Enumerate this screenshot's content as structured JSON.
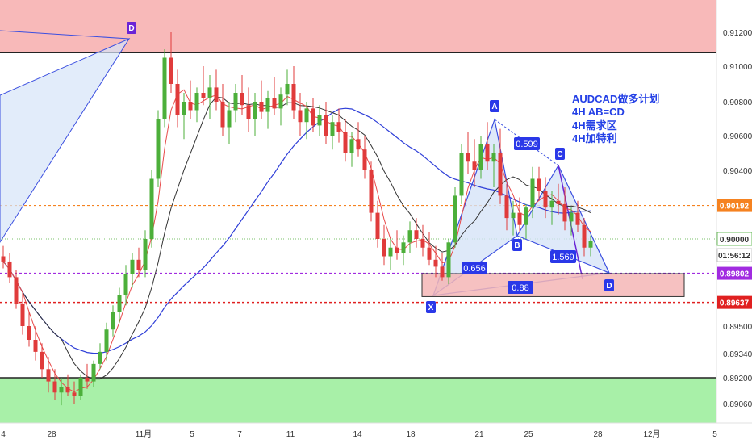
{
  "colors": {
    "supply_zone": "#f8b9b9",
    "demand_zone": "#a8f0a8",
    "target_zone": "#f4b6b6",
    "pattern_fill": "#d6e4f8",
    "pattern_line": "#3b4fe0",
    "marker_bg": "#2a38e8",
    "marker_bg_d_top": "#6a24d6",
    "ma_fast": "#e84a4a",
    "ma_mid": "#333333",
    "ma_slow": "#2f3fd8",
    "candle_up": "#4caf3a",
    "candle_down": "#e03b3b",
    "orange_level": "#f58220",
    "purple_level": "#a12be0",
    "red_level": "#e02020",
    "current_level": "#4caf3a"
  },
  "chart_data": {
    "type": "candlestick",
    "symbol": "AUDCAD",
    "timeframe": "4H",
    "x_tick_labels": [
      "4",
      "28",
      "11月",
      "5",
      "7",
      "11",
      "14",
      "18",
      "21",
      "25",
      "28",
      "12月",
      "5"
    ],
    "y_tick_labels": [
      "0.91200",
      "0.91000",
      "0.90800",
      "0.90600",
      "0.90400",
      "0.90000",
      "0.89500",
      "0.89340",
      "0.89200",
      "0.89060"
    ],
    "price_tags": [
      {
        "label": "0.90192",
        "role": "orange"
      },
      {
        "label": "0.90000",
        "role": "current"
      },
      {
        "label": "01:56:12",
        "role": "timer"
      },
      {
        "label": "0.89802",
        "role": "purple"
      },
      {
        "label": "0.89637",
        "role": "red"
      }
    ],
    "levels": {
      "supply_zone_top": 0.9135,
      "supply_zone_bottom": 0.9108,
      "demand_zone_top": 0.892,
      "demand_zone_bottom": 0.8895,
      "target_zone_top": 0.898,
      "target_zone_bottom": 0.8967,
      "orange": 0.90192,
      "current": 0.9,
      "purple": 0.89802,
      "red": 0.89637
    },
    "y_range": [
      0.8895,
      0.9135
    ],
    "candles": [
      [
        0.899,
        0.8996,
        0.8983,
        0.8987
      ],
      [
        0.8987,
        0.8992,
        0.8975,
        0.8978
      ],
      [
        0.8978,
        0.8982,
        0.896,
        0.8963
      ],
      [
        0.8963,
        0.897,
        0.8945,
        0.895
      ],
      [
        0.895,
        0.8958,
        0.8938,
        0.8942
      ],
      [
        0.8942,
        0.895,
        0.893,
        0.8935
      ],
      [
        0.8935,
        0.894,
        0.892,
        0.8925
      ],
      [
        0.8925,
        0.8932,
        0.8912,
        0.8918
      ],
      [
        0.8918,
        0.8925,
        0.8908,
        0.8912
      ],
      [
        0.8912,
        0.892,
        0.8905,
        0.8915
      ],
      [
        0.8915,
        0.8922,
        0.891,
        0.8912
      ],
      [
        0.8912,
        0.8918,
        0.8906,
        0.891
      ],
      [
        0.891,
        0.8922,
        0.8908,
        0.892
      ],
      [
        0.892,
        0.8928,
        0.8914,
        0.8918
      ],
      [
        0.8918,
        0.893,
        0.8915,
        0.8928
      ],
      [
        0.8928,
        0.894,
        0.8925,
        0.8935
      ],
      [
        0.8935,
        0.8952,
        0.893,
        0.8948
      ],
      [
        0.8948,
        0.8962,
        0.8944,
        0.8958
      ],
      [
        0.8958,
        0.8972,
        0.8952,
        0.8968
      ],
      [
        0.8968,
        0.8985,
        0.8962,
        0.898
      ],
      [
        0.898,
        0.8992,
        0.8972,
        0.8988
      ],
      [
        0.8988,
        0.8995,
        0.8978,
        0.8982
      ],
      [
        0.8982,
        0.9005,
        0.8978,
        0.9
      ],
      [
        0.9,
        0.904,
        0.8995,
        0.9035
      ],
      [
        0.9035,
        0.9075,
        0.903,
        0.907
      ],
      [
        0.907,
        0.911,
        0.9065,
        0.9105
      ],
      [
        0.9105,
        0.912,
        0.9085,
        0.909
      ],
      [
        0.909,
        0.9098,
        0.9065,
        0.9072
      ],
      [
        0.9072,
        0.9085,
        0.9058,
        0.908
      ],
      [
        0.908,
        0.9092,
        0.907,
        0.9075
      ],
      [
        0.9075,
        0.9088,
        0.9068,
        0.9085
      ],
      [
        0.9085,
        0.91,
        0.9078,
        0.9082
      ],
      [
        0.9082,
        0.9095,
        0.907,
        0.9088
      ],
      [
        0.9088,
        0.9098,
        0.9075,
        0.908
      ],
      [
        0.908,
        0.909,
        0.906,
        0.9065
      ],
      [
        0.9065,
        0.908,
        0.9055,
        0.9075
      ],
      [
        0.9075,
        0.909,
        0.9068,
        0.9085
      ],
      [
        0.9085,
        0.9095,
        0.9072,
        0.9078
      ],
      [
        0.9078,
        0.9088,
        0.9062,
        0.907
      ],
      [
        0.907,
        0.9085,
        0.906,
        0.908
      ],
      [
        0.908,
        0.9092,
        0.907,
        0.9074
      ],
      [
        0.9074,
        0.9086,
        0.9064,
        0.9082
      ],
      [
        0.9082,
        0.9094,
        0.9072,
        0.9076
      ],
      [
        0.9076,
        0.9088,
        0.9066,
        0.9084
      ],
      [
        0.9084,
        0.9098,
        0.9078,
        0.909
      ],
      [
        0.909,
        0.91,
        0.907,
        0.9075
      ],
      [
        0.9075,
        0.9085,
        0.906,
        0.9068
      ],
      [
        0.9068,
        0.908,
        0.9058,
        0.9076
      ],
      [
        0.9076,
        0.9082,
        0.9062,
        0.9066
      ],
      [
        0.9066,
        0.9078,
        0.906,
        0.9072
      ],
      [
        0.9072,
        0.908,
        0.9055,
        0.906
      ],
      [
        0.906,
        0.9072,
        0.9052,
        0.9068
      ],
      [
        0.9068,
        0.9076,
        0.9056,
        0.9062
      ],
      [
        0.9062,
        0.907,
        0.9045,
        0.905
      ],
      [
        0.905,
        0.9062,
        0.9042,
        0.9058
      ],
      [
        0.9058,
        0.9068,
        0.9048,
        0.9052
      ],
      [
        0.9052,
        0.906,
        0.9035,
        0.904
      ],
      [
        0.904,
        0.9045,
        0.901,
        0.9015
      ],
      [
        0.9015,
        0.9022,
        0.8995,
        0.9
      ],
      [
        0.9,
        0.9008,
        0.8985,
        0.899
      ],
      [
        0.899,
        0.9,
        0.8982,
        0.8995
      ],
      [
        0.8995,
        0.9005,
        0.8988,
        0.8992
      ],
      [
        0.8992,
        0.9002,
        0.8985,
        0.8998
      ],
      [
        0.8998,
        0.901,
        0.8992,
        0.9005
      ],
      [
        0.9005,
        0.9012,
        0.8995,
        0.9
      ],
      [
        0.9,
        0.9008,
        0.899,
        0.8995
      ],
      [
        0.8995,
        0.9004,
        0.8985,
        0.8988
      ],
      [
        0.8988,
        0.8996,
        0.8978,
        0.8984
      ],
      [
        0.8984,
        0.8992,
        0.8976,
        0.8978
      ],
      [
        0.8978,
        0.9,
        0.8974,
        0.8998
      ],
      [
        0.8998,
        0.903,
        0.8995,
        0.9025
      ],
      [
        0.9025,
        0.9055,
        0.902,
        0.905
      ],
      [
        0.905,
        0.9062,
        0.9038,
        0.9045
      ],
      [
        0.9045,
        0.9058,
        0.903,
        0.904
      ],
      [
        0.904,
        0.906,
        0.9035,
        0.9055
      ],
      [
        0.9055,
        0.9068,
        0.904,
        0.9045
      ],
      [
        0.9045,
        0.9055,
        0.903,
        0.905
      ],
      [
        0.905,
        0.9064,
        0.902,
        0.9025
      ],
      [
        0.9025,
        0.9032,
        0.9005,
        0.9012
      ],
      [
        0.9012,
        0.9022,
        0.9002,
        0.9015
      ],
      [
        0.9015,
        0.9024,
        0.9004,
        0.9008
      ],
      [
        0.9008,
        0.902,
        0.9,
        0.9018
      ],
      [
        0.9018,
        0.9042,
        0.9012,
        0.9035
      ],
      [
        0.9035,
        0.9042,
        0.9022,
        0.9028
      ],
      [
        0.9028,
        0.9036,
        0.9012,
        0.9018
      ],
      [
        0.9018,
        0.9028,
        0.9008,
        0.9022
      ],
      [
        0.9022,
        0.9032,
        0.9014,
        0.902
      ],
      [
        0.902,
        0.903,
        0.9005,
        0.901
      ],
      [
        0.901,
        0.9018,
        0.9002,
        0.9015
      ],
      [
        0.9015,
        0.9022,
        0.9004,
        0.9008
      ],
      [
        0.9008,
        0.9012,
        0.899,
        0.8995
      ],
      [
        0.8995,
        0.9002,
        0.899,
        0.8999
      ]
    ]
  },
  "pattern": {
    "points": [
      {
        "id": "X",
        "label": "X"
      },
      {
        "id": "A",
        "label": "A"
      },
      {
        "id": "B",
        "label": "B"
      },
      {
        "id": "C",
        "label": "C"
      },
      {
        "id": "D",
        "label": "D"
      },
      {
        "id": "Dtop",
        "label": "D"
      }
    ],
    "ratios": [
      "0.599",
      "0.656",
      "1.569",
      "0.88"
    ]
  },
  "note": {
    "line1": "AUDCAD做多计划",
    "line2": "4H AB=CD",
    "line3": "4H需求区",
    "line4": "4H加特利"
  }
}
